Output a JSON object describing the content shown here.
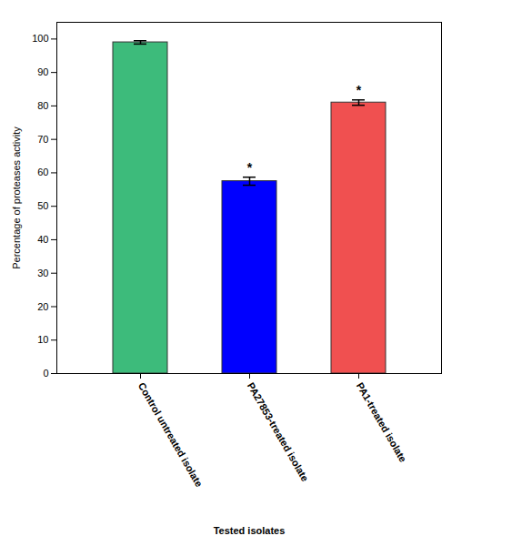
{
  "chart_data": {
    "type": "bar",
    "categories": [
      "Control untreated isolate",
      "PA27853-treated isolate",
      "PA1-treated isolate"
    ],
    "values": [
      99.0,
      57.5,
      81.0
    ],
    "errors": [
      0.5,
      1.2,
      0.8
    ],
    "colors": [
      "#3dbb7b",
      "#0000ff",
      "#f05050"
    ],
    "significance_labels": [
      null,
      "*",
      "*"
    ],
    "ylabel": "Percentage of proteases activity",
    "xlabel": "Tested isolates",
    "ylim": [
      0,
      105
    ],
    "yticks": [
      0,
      10,
      20,
      30,
      40,
      50,
      60,
      70,
      80,
      90,
      100
    ],
    "grid": false
  }
}
